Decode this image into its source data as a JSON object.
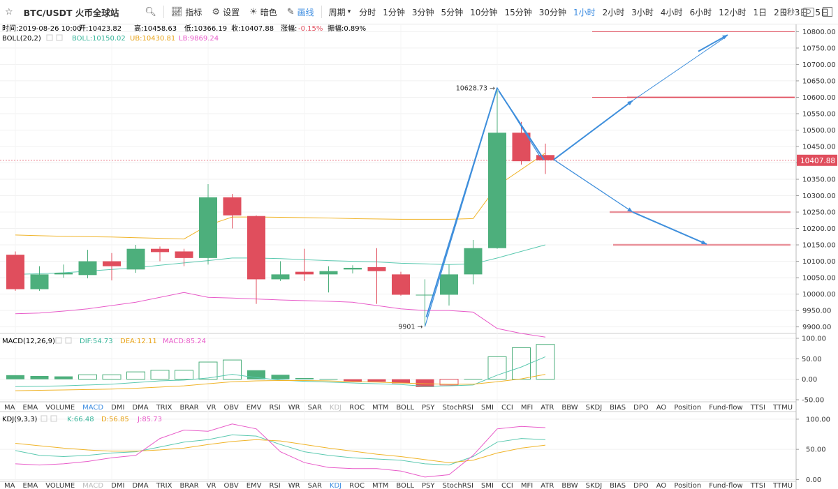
{
  "toolbar": {
    "symbol": "BTC/USDT 火币全球站",
    "indicator_label": "指标",
    "settings_label": "设置",
    "dark_label": "暗色",
    "draw_label": "画线",
    "period_label": "周期",
    "periods": [
      "分时",
      "1分钟",
      "3分钟",
      "5分钟",
      "10分钟",
      "15分钟",
      "30分钟",
      "1小时",
      "2小时",
      "3小时",
      "4小时",
      "6小时",
      "12小时",
      "1日",
      "2日",
      "3日",
      "5日"
    ],
    "active_period": "1小时",
    "countdown": "0秒"
  },
  "info_bar": {
    "time": "时间:2019-08-26 10:00",
    "open": "开:10423.82",
    "high": "高:10458.63",
    "low": "低:10366.19",
    "close": "收:10407.88",
    "change_label": "涨幅:",
    "change_value": "-0.15%",
    "amplitude": "振幅:0.89%"
  },
  "boll_legend": {
    "name": "BOLL(20,2)",
    "boll": "BOLL:10150.02",
    "ub": "UB:10430.81",
    "lb": "LB:9869.24"
  },
  "macd_legend": {
    "name": "MACD(12,26,9)",
    "dif": "DIF:54.73",
    "dea": "DEA:12.11",
    "macd": "MACD:85.24"
  },
  "kdj_legend": {
    "name": "KDJ(9,3,3)",
    "k": "K:66.48",
    "d": "D:56.85",
    "j": "J:85.73"
  },
  "tabs": [
    "MA",
    "EMA",
    "VOLUME",
    "MACD",
    "DMI",
    "DMA",
    "TRIX",
    "BRAR",
    "VR",
    "OBV",
    "EMV",
    "RSI",
    "WR",
    "SAR",
    "KDJ",
    "ROC",
    "MTM",
    "BOLL",
    "PSY",
    "StochRSI",
    "SMI",
    "CCI",
    "MFI",
    "ATR",
    "BBW",
    "SKDJ",
    "BIAS",
    "DPO",
    "AO",
    "Position",
    "Fund-flow",
    "TTSI",
    "TTMU"
  ],
  "tabs_active_1": "MACD",
  "tabs_active_2": "KDJ",
  "colors": {
    "up": "#4daf7c",
    "down": "#e04e5d",
    "boll_mid": "#5bc9b0",
    "boll_ub": "#f0b429",
    "boll_lb": "#e85bc9",
    "draw": "#3f8fdc",
    "level": "#e04e5d"
  },
  "chart_data": {
    "type": "candlestick",
    "main": {
      "ylim": [
        9880,
        10820
      ],
      "yticks": [
        9900,
        9950,
        10000,
        10050,
        10100,
        10150,
        10200,
        10250,
        10300,
        10350,
        10400,
        10450,
        10500,
        10550,
        10600,
        10650,
        10700,
        10750,
        10800
      ],
      "current_price": 10407.88,
      "candles": [
        {
          "o": 10120,
          "h": 10130,
          "l": 10010,
          "c": 10015
        },
        {
          "o": 10015,
          "h": 10085,
          "l": 10010,
          "c": 10060
        },
        {
          "o": 10060,
          "h": 10090,
          "l": 10050,
          "c": 10065
        },
        {
          "o": 10058,
          "h": 10135,
          "l": 10048,
          "c": 10100
        },
        {
          "o": 10100,
          "h": 10125,
          "l": 10042,
          "c": 10085
        },
        {
          "o": 10075,
          "h": 10150,
          "l": 10065,
          "c": 10138
        },
        {
          "o": 10138,
          "h": 10145,
          "l": 10100,
          "c": 10128
        },
        {
          "o": 10130,
          "h": 10138,
          "l": 10085,
          "c": 10110
        },
        {
          "o": 10110,
          "h": 10335,
          "l": 10090,
          "c": 10295
        },
        {
          "o": 10295,
          "h": 10305,
          "l": 10200,
          "c": 10240
        },
        {
          "o": 10238,
          "h": 10240,
          "l": 9970,
          "c": 10045
        },
        {
          "o": 10045,
          "h": 10100,
          "l": 10040,
          "c": 10060
        },
        {
          "o": 10068,
          "h": 10138,
          "l": 10040,
          "c": 10060
        },
        {
          "o": 10060,
          "h": 10085,
          "l": 10005,
          "c": 10070
        },
        {
          "o": 10075,
          "h": 10088,
          "l": 10063,
          "c": 10080
        },
        {
          "o": 10082,
          "h": 10140,
          "l": 9970,
          "c": 10070
        },
        {
          "o": 10060,
          "h": 10068,
          "l": 9995,
          "c": 9998
        },
        {
          "o": 9998,
          "h": 10045,
          "l": 9901,
          "c": 9998
        },
        {
          "o": 9998,
          "h": 10090,
          "l": 9965,
          "c": 10060
        },
        {
          "o": 10060,
          "h": 10165,
          "l": 10030,
          "c": 10140
        },
        {
          "o": 10140,
          "h": 10628.73,
          "l": 10138,
          "c": 10492
        },
        {
          "o": 10492,
          "h": 10525,
          "l": 10395,
          "c": 10405
        },
        {
          "o": 10423.82,
          "h": 10458.63,
          "l": 10366.19,
          "c": 10407.88
        }
      ],
      "boll_mid": [
        10060,
        10062,
        10065,
        10070,
        10075,
        10080,
        10088,
        10095,
        10102,
        10110,
        10110,
        10108,
        10105,
        10102,
        10100,
        10098,
        10094,
        10092,
        10090,
        10092,
        10110,
        10130,
        10150
      ],
      "boll_ub": [
        10180,
        10178,
        10176,
        10175,
        10174,
        10172,
        10170,
        10168,
        10210,
        10235,
        10235,
        10234,
        10233,
        10232,
        10230,
        10229,
        10228,
        10228,
        10228,
        10230,
        10330,
        10380,
        10430
      ],
      "boll_lb": [
        9940,
        9942,
        9948,
        9955,
        9965,
        9975,
        9990,
        10005,
        9990,
        9988,
        9985,
        9982,
        9980,
        9978,
        9975,
        9965,
        9955,
        9950,
        9950,
        9945,
        9895,
        9880,
        9869
      ],
      "annotations": [
        {
          "label": "10628.73",
          "price": 10628.73,
          "index": 20,
          "side": "left"
        },
        {
          "label": "9901",
          "price": 9901,
          "index": 17,
          "side": "left"
        }
      ],
      "levels": [
        10800,
        10600,
        10250,
        10150
      ]
    },
    "macd": {
      "ylim": [
        -55,
        105
      ],
      "yticks": [
        -50,
        0,
        50,
        100
      ],
      "tick_labels": [
        "-50.00",
        "0.00",
        "50.00",
        "100.00"
      ],
      "hist": [
        10,
        8,
        7,
        11,
        11,
        18,
        22,
        22,
        42,
        47,
        22,
        11,
        3,
        1,
        -6,
        -6,
        -10,
        -19,
        -14,
        1,
        55,
        77,
        85
      ],
      "dif": [
        -18,
        -17,
        -16,
        -14,
        -12,
        -8,
        -4,
        -2,
        3,
        12,
        4,
        -2,
        -5,
        -7,
        -9,
        -11,
        -13,
        -17,
        -16,
        -14,
        10,
        30,
        55
      ],
      "dea": [
        -28,
        -27,
        -26,
        -25,
        -24,
        -22,
        -19,
        -16,
        -11,
        -6,
        -4,
        -3,
        -3,
        -4,
        -6,
        -7,
        -9,
        -11,
        -12,
        -12,
        -6,
        1,
        12
      ]
    },
    "kdj": {
      "ylim": [
        -3,
        108
      ],
      "yticks": [
        0,
        50,
        100
      ],
      "tick_labels": [
        "0.00",
        "50.00",
        "100.00"
      ],
      "k": [
        48,
        40,
        38,
        40,
        44,
        46,
        54,
        62,
        66,
        74,
        72,
        58,
        46,
        40,
        36,
        34,
        32,
        26,
        24,
        38,
        62,
        68,
        66
      ],
      "d": [
        60,
        56,
        52,
        49,
        47,
        47,
        49,
        52,
        58,
        63,
        66,
        64,
        58,
        52,
        47,
        42,
        38,
        33,
        28,
        32,
        44,
        52,
        57
      ],
      "j": [
        26,
        24,
        26,
        30,
        36,
        40,
        68,
        82,
        80,
        92,
        84,
        46,
        28,
        20,
        18,
        18,
        14,
        4,
        8,
        40,
        84,
        88,
        86
      ]
    }
  }
}
